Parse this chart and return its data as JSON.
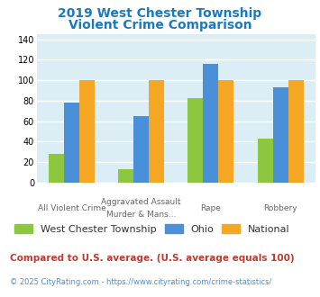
{
  "title_line1": "2019 West Chester Township",
  "title_line2": "Violent Crime Comparison",
  "title_color": "#1a7abf",
  "top_labels": [
    "",
    "Aggravated Assault",
    "Rape",
    "Robbery"
  ],
  "bot_labels": [
    "All Violent Crime",
    "Murder & Mans...",
    "",
    ""
  ],
  "series": {
    "West Chester Township": {
      "values": [
        28,
        13,
        83,
        43
      ],
      "color": "#8dc63f"
    },
    "Ohio": {
      "values": [
        78,
        65,
        116,
        93
      ],
      "color": "#4a90d9"
    },
    "National": {
      "values": [
        100,
        100,
        100,
        100
      ],
      "color": "#f5a623"
    }
  },
  "ylim": [
    0,
    145
  ],
  "yticks": [
    0,
    20,
    40,
    60,
    80,
    100,
    120,
    140
  ],
  "plot_bg": "#dceef5",
  "grid_color": "#ffffff",
  "legend_text_color": "#333333",
  "footer_text": "Compared to U.S. average. (U.S. average equals 100)",
  "footer_color": "#c0392b",
  "copyright_text": "© 2025 CityRating.com - https://www.cityrating.com/crime-statistics/",
  "copyright_color": "#4a90d9",
  "bar_width": 0.22
}
